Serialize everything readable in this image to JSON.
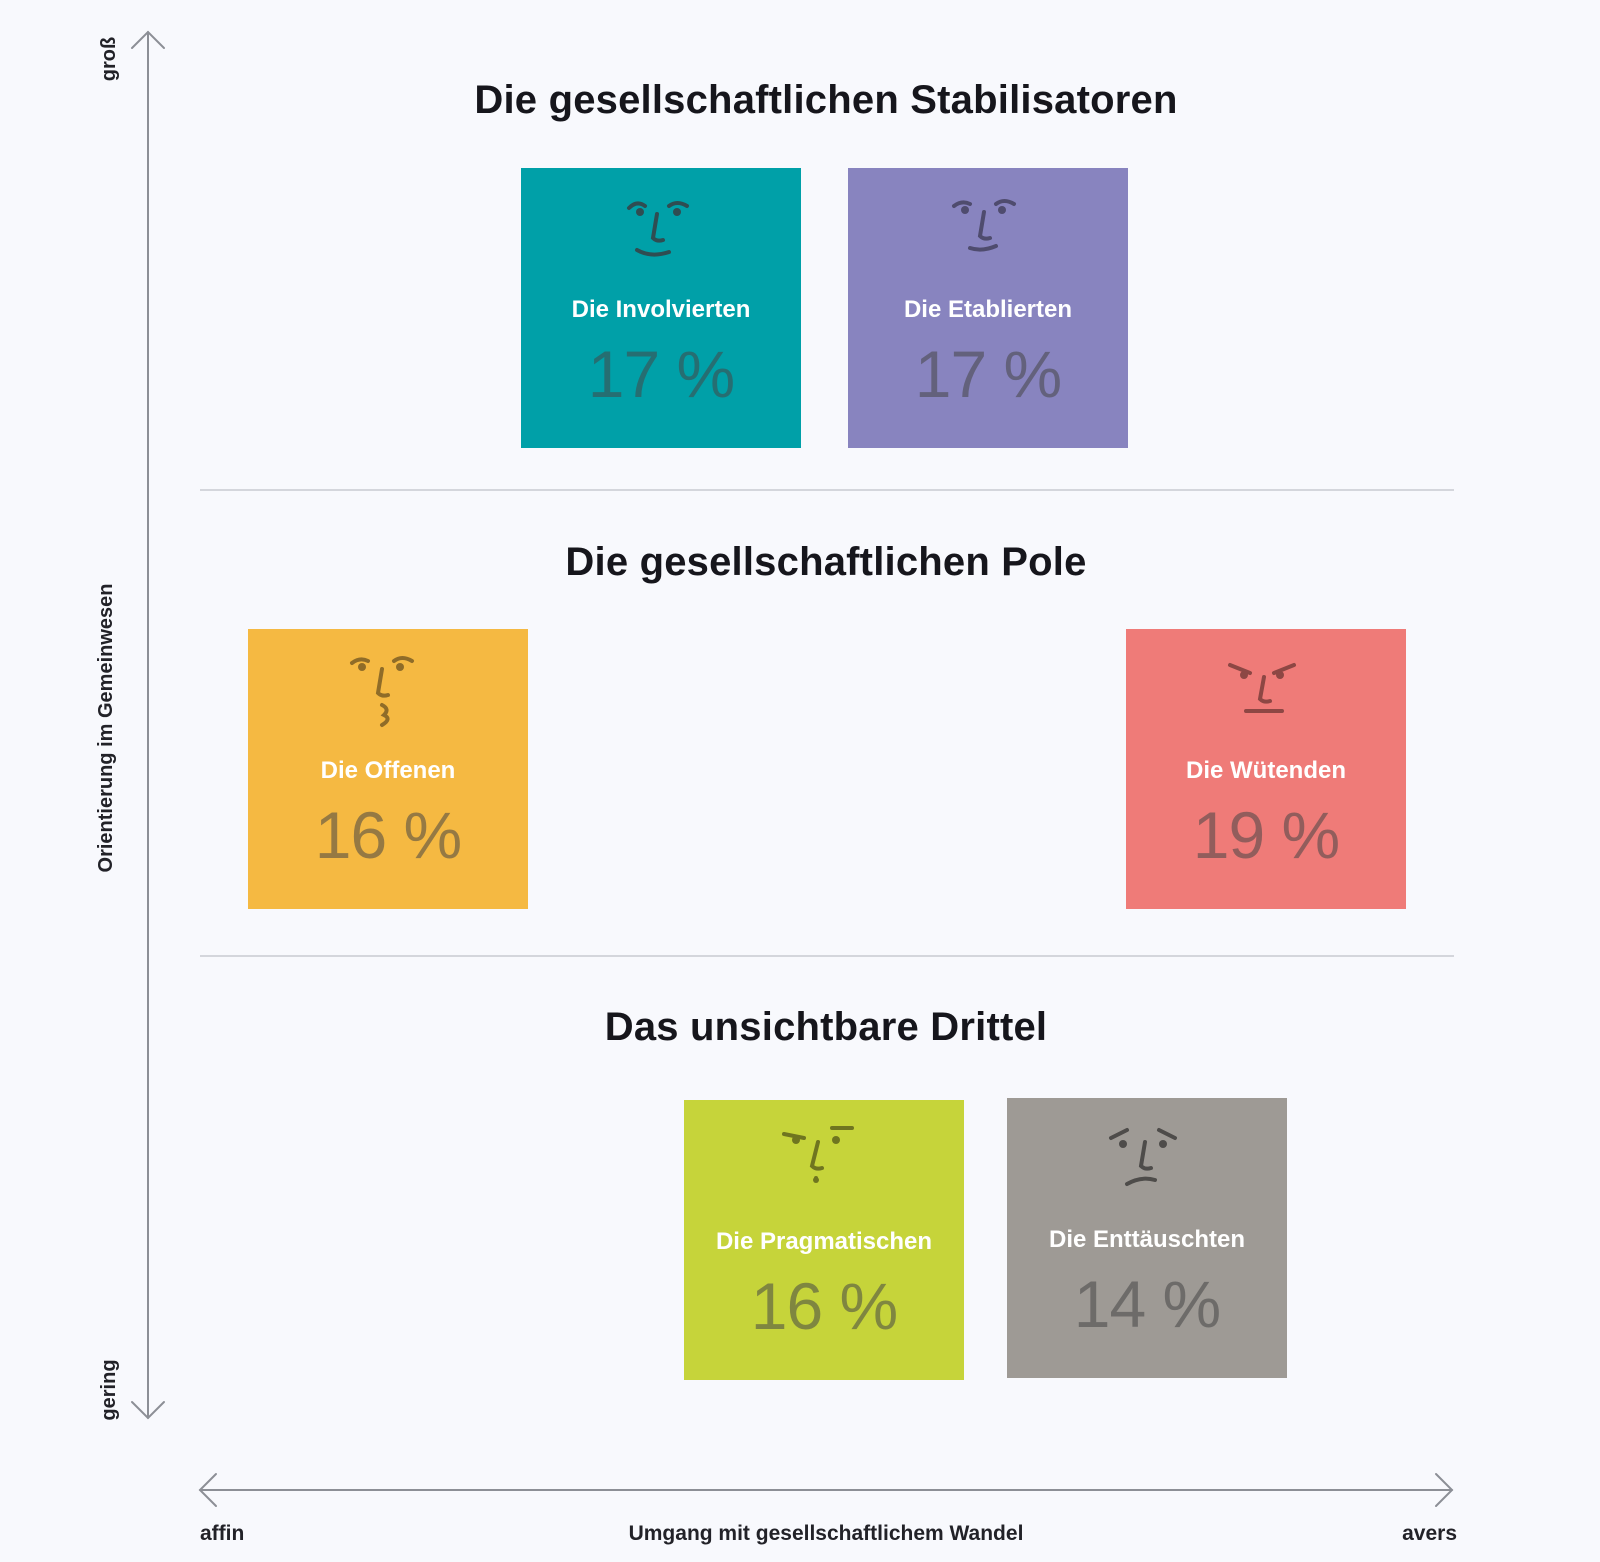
{
  "axes": {
    "y_title": "Orientierung im Gemeinwesen",
    "y_top": "groß",
    "y_bottom": "gering",
    "x_title": "Umgang mit gesellschaftlichem Wandel",
    "x_left": "affin",
    "x_right": "avers"
  },
  "groups": [
    {
      "title": "Die gesellschaftlichen Stabilisatoren",
      "segments": [
        {
          "name": "Die Involvierten",
          "percent": "17 %",
          "value": 17,
          "color": "#00a0a8",
          "icon": "smiling-face-icon"
        },
        {
          "name": "Die Etablierten",
          "percent": "17 %",
          "value": 17,
          "color": "#8884bf",
          "icon": "content-face-icon"
        }
      ]
    },
    {
      "title": "Die gesellschaftlichen Pole",
      "segments": [
        {
          "name": "Die Offenen",
          "percent": "16 %",
          "value": 16,
          "color": "#f5b942",
          "icon": "whistling-face-icon"
        },
        {
          "name": "Die Wütenden",
          "percent": "19 %",
          "value": 19,
          "color": "#ef7b78",
          "icon": "angry-face-icon"
        }
      ]
    },
    {
      "title": "Das unsichtbare Drittel",
      "segments": [
        {
          "name": "Die Pragmatischen",
          "percent": "16 %",
          "value": 16,
          "color": "#c6d43a",
          "icon": "skeptical-face-icon"
        },
        {
          "name": "Die Enttäuschten",
          "percent": "14 %",
          "value": 14,
          "color": "#9e9a95",
          "icon": "disappointed-face-icon"
        }
      ]
    }
  ]
}
